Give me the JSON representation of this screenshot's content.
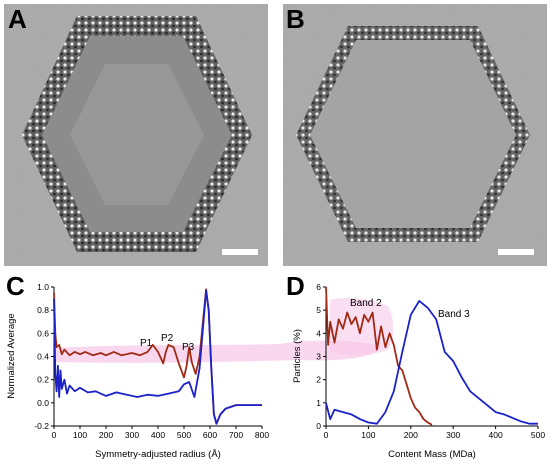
{
  "figure": {
    "panel_labels": {
      "a": "A",
      "b": "B",
      "c": "C",
      "d": "D"
    },
    "colors": {
      "red": "#a02a14",
      "blue": "#1a22c8",
      "pink_band": "#f6c8e8",
      "micrograph_bg": "#a9a9a9"
    }
  },
  "chart_data": [
    {
      "type": "line",
      "panel": "C",
      "xlabel": "Symmetry-adjusted radius (Å)",
      "ylabel": "Normalized Average",
      "xlim": [
        0,
        800
      ],
      "ylim": [
        -0.2,
        1.0
      ],
      "xticks": [
        "0",
        "100",
        "200",
        "300",
        "400",
        "500",
        "600",
        "700",
        "800"
      ],
      "yticks": [
        "-0.2",
        "0.0",
        "0.2",
        "0.4",
        "0.6",
        "0.8",
        "1.0"
      ],
      "annotations": [
        "P1",
        "P2",
        "P3"
      ],
      "series": [
        {
          "color": "#a02a14",
          "x": [
            0,
            5,
            10,
            20,
            30,
            40,
            60,
            80,
            100,
            120,
            150,
            180,
            200,
            230,
            260,
            300,
            330,
            360,
            380,
            400,
            420,
            430,
            440,
            460,
            480,
            500,
            510,
            520,
            530,
            545,
            560,
            575,
            585,
            595,
            605,
            615,
            625,
            640,
            660,
            700,
            750,
            800
          ],
          "y": [
            0.95,
            0.6,
            0.48,
            0.5,
            0.42,
            0.46,
            0.41,
            0.44,
            0.42,
            0.44,
            0.41,
            0.43,
            0.41,
            0.44,
            0.41,
            0.43,
            0.41,
            0.44,
            0.5,
            0.44,
            0.34,
            0.44,
            0.5,
            0.48,
            0.34,
            0.22,
            0.32,
            0.48,
            0.35,
            0.25,
            0.4,
            0.75,
            0.98,
            0.8,
            0.3,
            -0.1,
            -0.18,
            -0.1,
            -0.05,
            -0.02,
            -0.02,
            -0.02
          ]
        },
        {
          "color": "#1a22c8",
          "x": [
            0,
            5,
            10,
            15,
            20,
            25,
            30,
            40,
            50,
            60,
            80,
            100,
            130,
            160,
            200,
            240,
            280,
            320,
            360,
            400,
            440,
            480,
            500,
            520,
            540,
            560,
            575,
            585,
            595,
            605,
            615,
            625,
            640,
            660,
            700,
            750,
            800
          ],
          "y": [
            0.9,
            0.25,
            0.1,
            0.32,
            0.05,
            0.28,
            0.12,
            0.2,
            0.08,
            0.15,
            0.1,
            0.13,
            0.09,
            0.1,
            0.06,
            0.09,
            0.07,
            0.05,
            0.07,
            0.06,
            0.08,
            0.1,
            0.16,
            0.18,
            0.05,
            0.3,
            0.7,
            0.97,
            0.8,
            0.3,
            -0.1,
            -0.18,
            -0.1,
            -0.05,
            -0.02,
            -0.02,
            -0.02
          ]
        }
      ]
    },
    {
      "type": "line",
      "panel": "D",
      "xlabel": "Content Mass (MDa)",
      "ylabel": "Particles (%)",
      "xlim": [
        0,
        500
      ],
      "ylim": [
        0,
        6
      ],
      "xticks": [
        "0",
        "100",
        "200",
        "300",
        "400",
        "500"
      ],
      "yticks": [
        "0",
        "1",
        "2",
        "3",
        "4",
        "5",
        "6"
      ],
      "series": [
        {
          "name": "Band 2",
          "color": "#a02a14",
          "x": [
            0,
            5,
            10,
            20,
            30,
            40,
            50,
            60,
            70,
            80,
            90,
            100,
            110,
            120,
            130,
            140,
            150,
            160,
            170,
            180,
            190,
            200,
            210,
            220,
            230,
            240,
            250
          ],
          "y": [
            6.0,
            3.5,
            4.5,
            3.6,
            4.6,
            4.2,
            4.9,
            4.4,
            4.7,
            4.0,
            4.8,
            4.5,
            4.9,
            3.3,
            4.3,
            3.4,
            4.0,
            3.5,
            2.6,
            2.4,
            1.8,
            1.2,
            0.8,
            0.6,
            0.3,
            0.15,
            0.05
          ]
        },
        {
          "name": "Band 3",
          "color": "#1a22c8",
          "x": [
            0,
            10,
            20,
            40,
            60,
            80,
            100,
            120,
            140,
            160,
            180,
            200,
            220,
            240,
            260,
            280,
            300,
            320,
            340,
            360,
            380,
            400,
            420,
            440,
            460,
            480,
            500
          ],
          "y": [
            1.0,
            0.3,
            0.7,
            0.6,
            0.5,
            0.3,
            0.15,
            0.1,
            0.6,
            1.5,
            3.2,
            4.8,
            5.4,
            5.1,
            4.6,
            3.2,
            2.8,
            2.1,
            1.5,
            1.2,
            0.9,
            0.6,
            0.5,
            0.35,
            0.2,
            0.1,
            0.1
          ]
        }
      ]
    }
  ]
}
